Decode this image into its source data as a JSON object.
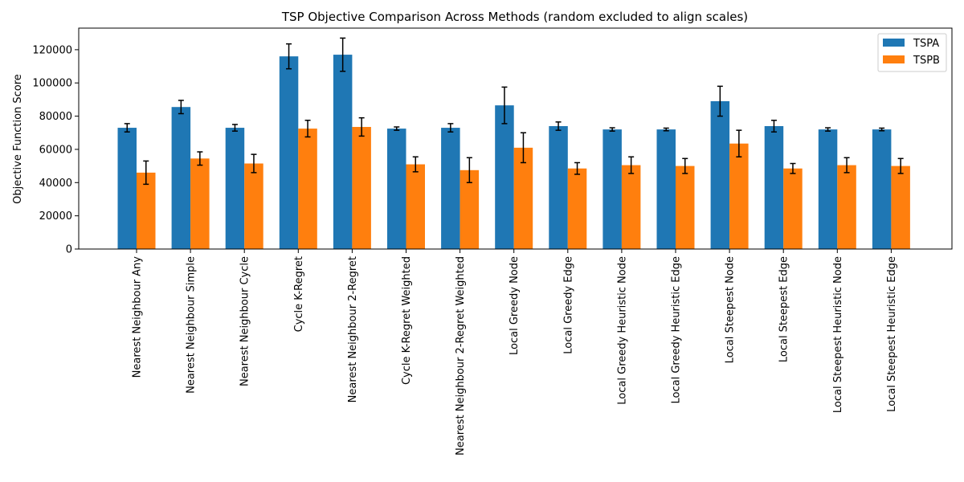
{
  "chart_data": {
    "type": "bar",
    "title": "TSP Objective Comparison Across Methods (random excluded to align scales)",
    "xlabel": "",
    "ylabel": "Objective Function Score",
    "ylim": [
      0,
      133000
    ],
    "yticks": [
      0,
      20000,
      40000,
      60000,
      80000,
      100000,
      120000
    ],
    "grid": false,
    "legend_position": "top-right",
    "categories": [
      "Nearest Neighbour Any",
      "Nearest Neighbour Simple",
      "Nearest Neighbour Cycle",
      "Cycle K-Regret",
      "Nearest Neighbour 2-Regret",
      "Cycle K-Regret Weighted",
      "Nearest Neighbour 2-Regret Weighted",
      "Local Greedy Node",
      "Local Greedy Edge",
      "Local Greedy Heuristic Node",
      "Local Greedy Heuristic Edge",
      "Local Steepest Node",
      "Local Steepest Edge",
      "Local Steepest Heuristic Node",
      "Local Steepest Heuristic Edge"
    ],
    "series": [
      {
        "name": "TSPA",
        "color": "#1f77b4",
        "values": [
          73000,
          85500,
          73000,
          116000,
          117000,
          72500,
          73000,
          86500,
          74000,
          72000,
          72000,
          89000,
          74000,
          72000,
          72000
        ],
        "errors": [
          2500,
          4000,
          2000,
          7500,
          10000,
          1000,
          2500,
          11000,
          2500,
          1000,
          800,
          9000,
          3500,
          1000,
          800
        ]
      },
      {
        "name": "TSPB",
        "color": "#ff7f0e",
        "values": [
          46000,
          54500,
          51500,
          72500,
          73500,
          51000,
          47500,
          61000,
          48500,
          50500,
          50000,
          63500,
          48500,
          50500,
          50000
        ],
        "errors": [
          7000,
          4000,
          5500,
          5000,
          5500,
          4500,
          7500,
          9000,
          3500,
          5000,
          4500,
          8000,
          3000,
          4500,
          4500
        ]
      }
    ]
  }
}
